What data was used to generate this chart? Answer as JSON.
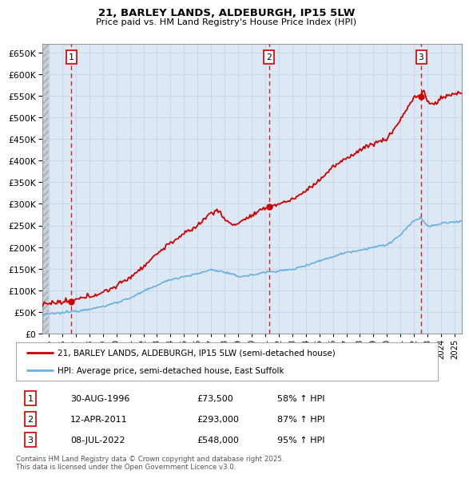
{
  "title": "21, BARLEY LANDS, ALDEBURGH, IP15 5LW",
  "subtitle": "Price paid vs. HM Land Registry's House Price Index (HPI)",
  "ylim": [
    0,
    670000
  ],
  "yticks": [
    0,
    50000,
    100000,
    150000,
    200000,
    250000,
    300000,
    350000,
    400000,
    450000,
    500000,
    550000,
    600000,
    650000
  ],
  "xlim_start": 1994.5,
  "xlim_end": 2025.5,
  "legend_line1": "21, BARLEY LANDS, ALDEBURGH, IP15 5LW (semi-detached house)",
  "legend_line2": "HPI: Average price, semi-detached house, East Suffolk",
  "sales": [
    {
      "date_num": 1996.66,
      "price": 73500,
      "label": "1"
    },
    {
      "date_num": 2011.28,
      "price": 293000,
      "label": "2"
    },
    {
      "date_num": 2022.52,
      "price": 548000,
      "label": "3"
    }
  ],
  "table_rows": [
    {
      "num": "1",
      "date": "30-AUG-1996",
      "price": "£73,500",
      "note": "58% ↑ HPI"
    },
    {
      "num": "2",
      "date": "12-APR-2011",
      "price": "£293,000",
      "note": "87% ↑ HPI"
    },
    {
      "num": "3",
      "date": "08-JUL-2022",
      "price": "£548,000",
      "note": "95% ↑ HPI"
    }
  ],
  "footer": "Contains HM Land Registry data © Crown copyright and database right 2025.\nThis data is licensed under the Open Government Licence v3.0.",
  "hpi_color": "#6ab0de",
  "price_color": "#cc0000",
  "vline_color": "#cc0000",
  "grid_color": "#c8d8e8",
  "plot_bg": "#dce8f4",
  "hatch_bg": "#c8d0da"
}
